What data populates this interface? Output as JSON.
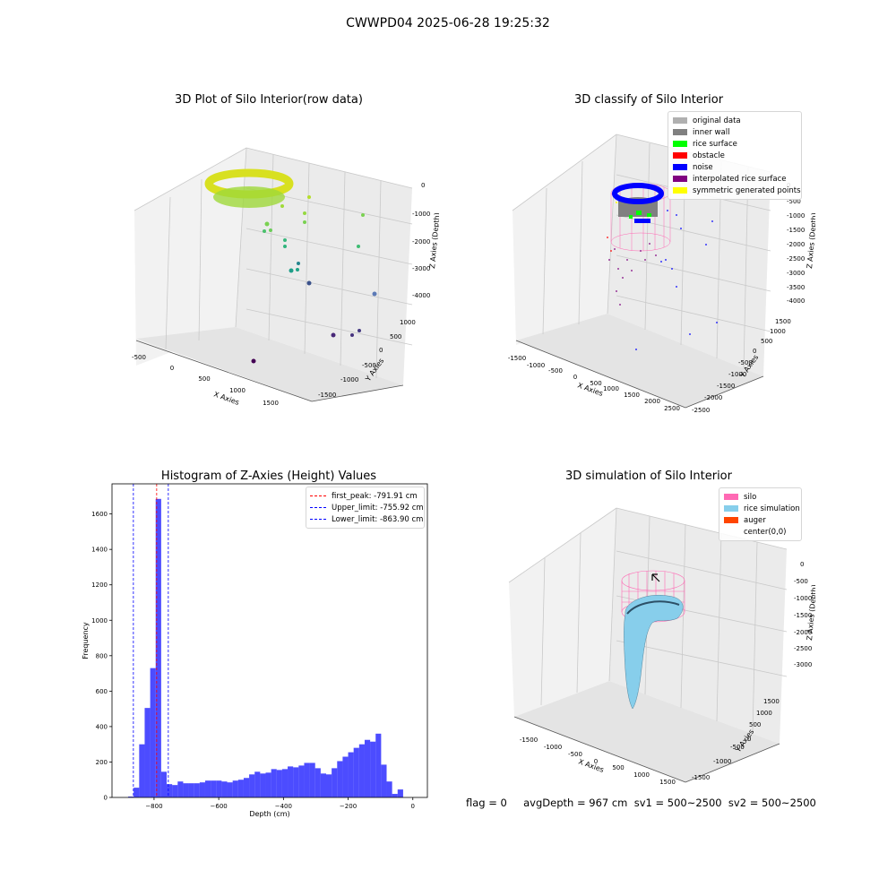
{
  "figure": {
    "suptitle": "CWWPD04 2025-06-28 19:25:32",
    "footer": "flag = 0     avgDepth = 967 cm  sv1 = 500~2500  sv2 = 500~2500"
  },
  "panels": {
    "raw": {
      "title": "3D Plot of Silo Interior(row data)",
      "xlabel": "X Axies",
      "ylabel": "Y Axies",
      "zlabel": "Z Axies (Depth)",
      "xticks": [
        "-500",
        "0",
        "500",
        "1000",
        "1500"
      ],
      "yticks": [
        "-1500",
        "-1000",
        "-500",
        "0",
        "500",
        "1000"
      ],
      "zticks": [
        "0",
        "-1000",
        "-2000",
        "-3000",
        "-4000"
      ]
    },
    "classify": {
      "title": "3D classify of Silo Interior",
      "xlabel": "X Axies",
      "ylabel": "Y Axies",
      "zlabel": "Z Axies (Depth)",
      "xticks": [
        "-1500",
        "-1000",
        "-500",
        "0",
        "500",
        "1000",
        "1500",
        "2000",
        "2500"
      ],
      "yticks": [
        "-2500",
        "-2000",
        "-1500",
        "-1000",
        "-500",
        "0",
        "500",
        "1000",
        "1500"
      ],
      "zticks": [
        "0",
        "-500",
        "-1000",
        "-1500",
        "-2000",
        "-2500",
        "-3000",
        "-3500",
        "-4000"
      ],
      "legend": [
        {
          "label": "original data",
          "color": "#b0b0b0"
        },
        {
          "label": "inner wall",
          "color": "#808080"
        },
        {
          "label": "rice surface",
          "color": "#00ff00"
        },
        {
          "label": "obstacle",
          "color": "#ff0000"
        },
        {
          "label": "noise",
          "color": "#0000ff"
        },
        {
          "label": "interpolated rice surface",
          "color": "#800080"
        },
        {
          "label": "symmetric generated points",
          "color": "#ffff00"
        }
      ]
    },
    "simulation": {
      "title": "3D simulation of Silo Interior",
      "xlabel": "X Axies",
      "ylabel": "Y Axies",
      "zlabel": "Z Axies (Depth)",
      "xticks": [
        "-1500",
        "-1000",
        "-500",
        "0",
        "500",
        "1000",
        "1500"
      ],
      "yticks": [
        "-1500",
        "-1000",
        "-500",
        "0",
        "500",
        "1000",
        "1500"
      ],
      "zticks": [
        "0",
        "-500",
        "-1000",
        "-1500",
        "-2000",
        "-2500",
        "-3000"
      ],
      "legend": [
        {
          "label": "silo",
          "color": "#ff69b4"
        },
        {
          "label": "rice simulation",
          "color": "#87ceeb"
        },
        {
          "label": "auger",
          "color": "#ff4500"
        },
        {
          "label": "center(0,0)",
          "color": ""
        }
      ]
    }
  },
  "chart_data": {
    "type": "bar",
    "title": "Histogram of Z-Axies (Height) Values",
    "xlabel": "Depth (cm)",
    "ylabel": "Frequency",
    "xlim": [
      -930,
      45
    ],
    "ylim": [
      0,
      1770
    ],
    "xticks": [
      -800,
      -600,
      -400,
      -200,
      0
    ],
    "xtick_labels": [
      "−800",
      "−600",
      "−400",
      "−200",
      "0"
    ],
    "yticks": [
      0,
      200,
      400,
      600,
      800,
      1000,
      1200,
      1400,
      1600
    ],
    "bar_color": "#0000ff",
    "bar_alpha": 0.7,
    "bins": [
      {
        "x0": -880,
        "x1": -863,
        "value": 5
      },
      {
        "x0": -863,
        "x1": -846,
        "value": 55
      },
      {
        "x0": -846,
        "x1": -829,
        "value": 300
      },
      {
        "x0": -829,
        "x1": -812,
        "value": 505
      },
      {
        "x0": -812,
        "x1": -795,
        "value": 730
      },
      {
        "x0": -795,
        "x1": -778,
        "value": 1685
      },
      {
        "x0": -778,
        "x1": -761,
        "value": 145
      },
      {
        "x0": -761,
        "x1": -744,
        "value": 75
      },
      {
        "x0": -744,
        "x1": -727,
        "value": 70
      },
      {
        "x0": -727,
        "x1": -710,
        "value": 90
      },
      {
        "x0": -710,
        "x1": -693,
        "value": 80
      },
      {
        "x0": -693,
        "x1": -676,
        "value": 80
      },
      {
        "x0": -676,
        "x1": -659,
        "value": 80
      },
      {
        "x0": -659,
        "x1": -642,
        "value": 85
      },
      {
        "x0": -642,
        "x1": -625,
        "value": 95
      },
      {
        "x0": -625,
        "x1": -608,
        "value": 95
      },
      {
        "x0": -608,
        "x1": -591,
        "value": 95
      },
      {
        "x0": -591,
        "x1": -574,
        "value": 90
      },
      {
        "x0": -574,
        "x1": -557,
        "value": 85
      },
      {
        "x0": -557,
        "x1": -540,
        "value": 95
      },
      {
        "x0": -540,
        "x1": -523,
        "value": 100
      },
      {
        "x0": -523,
        "x1": -506,
        "value": 110
      },
      {
        "x0": -506,
        "x1": -489,
        "value": 130
      },
      {
        "x0": -489,
        "x1": -472,
        "value": 145
      },
      {
        "x0": -472,
        "x1": -455,
        "value": 135
      },
      {
        "x0": -455,
        "x1": -438,
        "value": 140
      },
      {
        "x0": -438,
        "x1": -421,
        "value": 160
      },
      {
        "x0": -421,
        "x1": -404,
        "value": 155
      },
      {
        "x0": -404,
        "x1": -387,
        "value": 160
      },
      {
        "x0": -387,
        "x1": -370,
        "value": 175
      },
      {
        "x0": -370,
        "x1": -353,
        "value": 170
      },
      {
        "x0": -353,
        "x1": -336,
        "value": 180
      },
      {
        "x0": -336,
        "x1": -319,
        "value": 195
      },
      {
        "x0": -319,
        "x1": -302,
        "value": 195
      },
      {
        "x0": -302,
        "x1": -285,
        "value": 165
      },
      {
        "x0": -285,
        "x1": -268,
        "value": 135
      },
      {
        "x0": -268,
        "x1": -251,
        "value": 130
      },
      {
        "x0": -251,
        "x1": -234,
        "value": 165
      },
      {
        "x0": -234,
        "x1": -217,
        "value": 205
      },
      {
        "x0": -217,
        "x1": -200,
        "value": 230
      },
      {
        "x0": -200,
        "x1": -183,
        "value": 255
      },
      {
        "x0": -183,
        "x1": -166,
        "value": 280
      },
      {
        "x0": -166,
        "x1": -149,
        "value": 300
      },
      {
        "x0": -149,
        "x1": -132,
        "value": 325
      },
      {
        "x0": -132,
        "x1": -115,
        "value": 315
      },
      {
        "x0": -115,
        "x1": -98,
        "value": 360
      },
      {
        "x0": -98,
        "x1": -81,
        "value": 185
      },
      {
        "x0": -81,
        "x1": -64,
        "value": 90
      },
      {
        "x0": -64,
        "x1": -47,
        "value": 20
      },
      {
        "x0": -47,
        "x1": -30,
        "value": 45
      }
    ],
    "vlines": [
      {
        "x": -791.91,
        "color": "#ff0000",
        "label": "first_peak: -791.91 cm"
      },
      {
        "x": -755.92,
        "color": "#0000ff",
        "label": "Upper_limit: -755.92 cm"
      },
      {
        "x": -863.9,
        "color": "#0000ff",
        "label": "Lower_limit: -863.90 cm"
      }
    ],
    "legend_position": "upper right"
  }
}
